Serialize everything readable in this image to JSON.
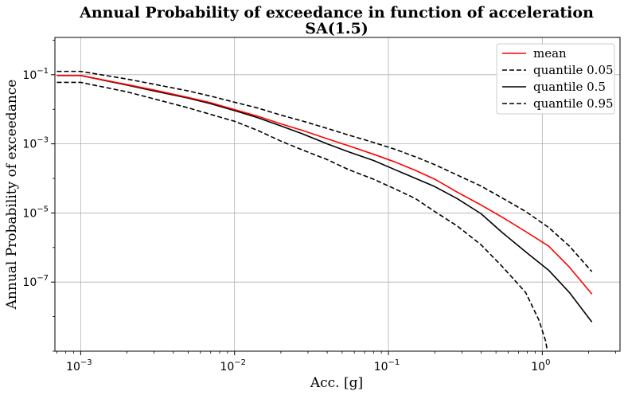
{
  "chart_data": {
    "type": "line",
    "title": "Annual Probability of exceedance in function of acceleration",
    "subtitle": "SA(1.5)",
    "xlabel": "Acc. [g]",
    "ylabel": "Annual Probability of exceedance",
    "xscale": "log",
    "yscale": "log",
    "xlim": [
      0.00068,
      3.2
    ],
    "ylim": [
      1e-09,
      1.2
    ],
    "grid": true,
    "legend_position": "top-right",
    "x_ticks": [
      {
        "value": 0.001,
        "mantissa": "10",
        "exp": "−3"
      },
      {
        "value": 0.01,
        "mantissa": "10",
        "exp": "−2"
      },
      {
        "value": 0.1,
        "mantissa": "10",
        "exp": "−1"
      },
      {
        "value": 1,
        "mantissa": "10",
        "exp": "0"
      }
    ],
    "y_ticks": [
      {
        "value": 1e-07,
        "mantissa": "10",
        "exp": "−7"
      },
      {
        "value": 1e-05,
        "mantissa": "10",
        "exp": "−5"
      },
      {
        "value": 0.001,
        "mantissa": "10",
        "exp": "−3"
      },
      {
        "value": 0.1,
        "mantissa": "10",
        "exp": "−1"
      }
    ],
    "series": [
      {
        "name": "mean",
        "color": "#ff0000",
        "dash": "solid",
        "points": [
          [
            0.0007,
            0.095
          ],
          [
            0.001,
            0.095
          ],
          [
            0.002,
            0.052
          ],
          [
            0.003,
            0.036
          ],
          [
            0.005,
            0.022
          ],
          [
            0.007,
            0.0155
          ],
          [
            0.01,
            0.0098
          ],
          [
            0.014,
            0.0064
          ],
          [
            0.02,
            0.0038
          ],
          [
            0.028,
            0.0024
          ],
          [
            0.04,
            0.0014
          ],
          [
            0.055,
            0.00088
          ],
          [
            0.08,
            0.0005
          ],
          [
            0.11,
            0.0003
          ],
          [
            0.15,
            0.00017
          ],
          [
            0.2,
            9.5e-05
          ],
          [
            0.28,
            4e-05
          ],
          [
            0.4,
            1.7e-05
          ],
          [
            0.55,
            7.5e-06
          ],
          [
            0.78,
            2.9e-06
          ],
          [
            1.1,
            1.1e-06
          ],
          [
            1.5,
            2.7e-07
          ],
          [
            2.1,
            4.5e-08
          ]
        ]
      },
      {
        "name": "quantile 0.05",
        "color": "#000000",
        "dash": "dashed",
        "points": [
          [
            0.0007,
            0.06
          ],
          [
            0.001,
            0.06
          ],
          [
            0.002,
            0.032
          ],
          [
            0.003,
            0.02
          ],
          [
            0.005,
            0.011
          ],
          [
            0.007,
            0.0071
          ],
          [
            0.01,
            0.0045
          ],
          [
            0.014,
            0.0025
          ],
          [
            0.02,
            0.0012
          ],
          [
            0.028,
            0.00065
          ],
          [
            0.04,
            0.00035
          ],
          [
            0.055,
            0.00018
          ],
          [
            0.08,
            9.5e-05
          ],
          [
            0.11,
            5e-05
          ],
          [
            0.15,
            2.6e-05
          ],
          [
            0.2,
            1.1e-05
          ],
          [
            0.28,
            4.2e-06
          ],
          [
            0.4,
            1.2e-06
          ],
          [
            0.55,
            2.8e-07
          ],
          [
            0.78,
            5e-08
          ],
          [
            0.95,
            8e-09
          ],
          [
            1.05,
            2e-09
          ],
          [
            1.08,
            1e-09
          ]
        ]
      },
      {
        "name": "quantile 0.5",
        "color": "#000000",
        "dash": "solid",
        "points": [
          [
            0.0007,
            0.095
          ],
          [
            0.001,
            0.095
          ],
          [
            0.002,
            0.05
          ],
          [
            0.003,
            0.034
          ],
          [
            0.005,
            0.021
          ],
          [
            0.007,
            0.0145
          ],
          [
            0.01,
            0.0092
          ],
          [
            0.014,
            0.0058
          ],
          [
            0.02,
            0.0033
          ],
          [
            0.028,
            0.0019
          ],
          [
            0.04,
            0.001
          ],
          [
            0.055,
            0.00059
          ],
          [
            0.08,
            0.00033
          ],
          [
            0.11,
            0.00018
          ],
          [
            0.15,
            0.0001
          ],
          [
            0.2,
            5.8e-05
          ],
          [
            0.28,
            2.6e-05
          ],
          [
            0.4,
            9.5e-06
          ],
          [
            0.55,
            2.7e-06
          ],
          [
            0.78,
            7.5e-07
          ],
          [
            1.1,
            2.2e-07
          ],
          [
            1.5,
            5e-08
          ],
          [
            2.1,
            7e-09
          ]
        ]
      },
      {
        "name": "quantile 0.95",
        "color": "#000000",
        "dash": "dashed",
        "points": [
          [
            0.0007,
            0.125
          ],
          [
            0.001,
            0.125
          ],
          [
            0.002,
            0.075
          ],
          [
            0.003,
            0.053
          ],
          [
            0.005,
            0.034
          ],
          [
            0.007,
            0.024
          ],
          [
            0.01,
            0.016
          ],
          [
            0.014,
            0.011
          ],
          [
            0.02,
            0.0068
          ],
          [
            0.028,
            0.0045
          ],
          [
            0.04,
            0.0028
          ],
          [
            0.055,
            0.0018
          ],
          [
            0.08,
            0.0011
          ],
          [
            0.11,
            0.0007
          ],
          [
            0.15,
            0.00042
          ],
          [
            0.2,
            0.00025
          ],
          [
            0.28,
            0.000125
          ],
          [
            0.4,
            6e-05
          ],
          [
            0.55,
            2.7e-05
          ],
          [
            0.78,
            1.1e-05
          ],
          [
            1.1,
            3.8e-06
          ],
          [
            1.5,
            1.1e-06
          ],
          [
            2.1,
            2e-07
          ]
        ]
      }
    ]
  }
}
